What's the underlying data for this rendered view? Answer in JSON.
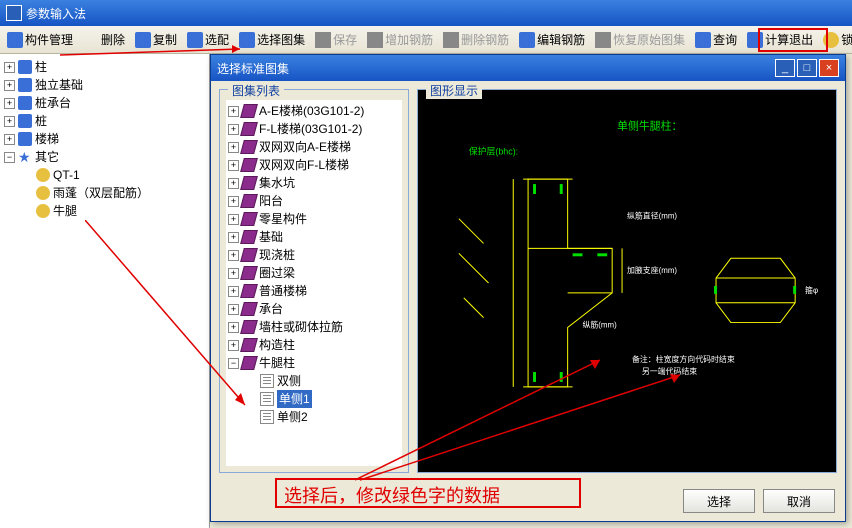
{
  "window": {
    "title": "参数输入法"
  },
  "toolbar": [
    {
      "name": "component-manage",
      "label": "构件管理",
      "icon": "ic-blue",
      "disabled": false
    },
    {
      "name": "delete",
      "label": "删除",
      "icon": "ic-x",
      "disabled": false
    },
    {
      "name": "copy",
      "label": "复制",
      "icon": "ic-blue",
      "disabled": false
    },
    {
      "name": "assign",
      "label": "选配",
      "icon": "ic-blue",
      "disabled": false
    },
    {
      "name": "select-atlas",
      "label": "选择图集",
      "icon": "ic-blue",
      "disabled": false
    },
    {
      "name": "save",
      "label": "保存",
      "icon": "ic-gray",
      "disabled": true
    },
    {
      "name": "add-rebar",
      "label": "增加钢筋",
      "icon": "ic-gray",
      "disabled": true
    },
    {
      "name": "delete-rebar",
      "label": "删除钢筋",
      "icon": "ic-gray",
      "disabled": true
    },
    {
      "name": "edit-rebar",
      "label": "编辑钢筋",
      "icon": "ic-blue",
      "disabled": false
    },
    {
      "name": "restore-atlas",
      "label": "恢复原始图集",
      "icon": "ic-gray",
      "disabled": true
    },
    {
      "name": "query",
      "label": "查询",
      "icon": "ic-blue",
      "disabled": false
    },
    {
      "name": "calc-exit",
      "label": "计算退出",
      "icon": "ic-blue",
      "disabled": false
    },
    {
      "name": "lock",
      "label": "锁",
      "icon": "ic-yellow",
      "disabled": false
    }
  ],
  "leftTree": [
    {
      "exp": "+",
      "indent": 0,
      "icon": "ic-blue",
      "label": "柱"
    },
    {
      "exp": "+",
      "indent": 0,
      "icon": "ic-blue",
      "label": "独立基础"
    },
    {
      "exp": "+",
      "indent": 0,
      "icon": "ic-blue",
      "label": "桩承台"
    },
    {
      "exp": "+",
      "indent": 0,
      "icon": "ic-blue",
      "label": "桩"
    },
    {
      "exp": "+",
      "indent": 0,
      "icon": "ic-blue",
      "label": "楼梯"
    },
    {
      "exp": "−",
      "indent": 0,
      "icon": "ic-star",
      "label": "其它"
    },
    {
      "exp": "",
      "indent": 1,
      "icon": "ic-yellow",
      "label": "QT-1"
    },
    {
      "exp": "",
      "indent": 1,
      "icon": "ic-yellow",
      "label": "雨蓬（双层配筋）"
    },
    {
      "exp": "",
      "indent": 1,
      "icon": "ic-yellow",
      "label": "牛腿"
    }
  ],
  "dialog": {
    "title": "选择标准图集",
    "groupLeft": "图集列表",
    "groupRight": "图形显示",
    "btnSelect": "选择",
    "btnCancel": "取消"
  },
  "atlasTree": [
    {
      "exp": "+",
      "indent": 0,
      "icon": "book",
      "label": "A-E楼梯(03G101-2)"
    },
    {
      "exp": "+",
      "indent": 0,
      "icon": "book",
      "label": "F-L楼梯(03G101-2)"
    },
    {
      "exp": "+",
      "indent": 0,
      "icon": "book",
      "label": "双网双向A-E楼梯"
    },
    {
      "exp": "+",
      "indent": 0,
      "icon": "book",
      "label": "双网双向F-L楼梯"
    },
    {
      "exp": "+",
      "indent": 0,
      "icon": "book",
      "label": "集水坑"
    },
    {
      "exp": "+",
      "indent": 0,
      "icon": "book",
      "label": "阳台"
    },
    {
      "exp": "+",
      "indent": 0,
      "icon": "book",
      "label": "零星构件"
    },
    {
      "exp": "+",
      "indent": 0,
      "icon": "book",
      "label": "基础"
    },
    {
      "exp": "+",
      "indent": 0,
      "icon": "book",
      "label": "现浇桩"
    },
    {
      "exp": "+",
      "indent": 0,
      "icon": "book",
      "label": "圈过梁"
    },
    {
      "exp": "+",
      "indent": 0,
      "icon": "book",
      "label": "普通楼梯"
    },
    {
      "exp": "+",
      "indent": 0,
      "icon": "book",
      "label": "承台"
    },
    {
      "exp": "+",
      "indent": 0,
      "icon": "book",
      "label": "墙柱或砌体拉筋"
    },
    {
      "exp": "+",
      "indent": 0,
      "icon": "book",
      "label": "构造柱"
    },
    {
      "exp": "−",
      "indent": 0,
      "icon": "book",
      "label": "牛腿柱"
    },
    {
      "exp": "",
      "indent": 1,
      "icon": "page",
      "label": "双侧"
    },
    {
      "exp": "",
      "indent": 1,
      "icon": "page",
      "label": "单侧1",
      "selected": true
    },
    {
      "exp": "",
      "indent": 1,
      "icon": "page",
      "label": "单侧2"
    }
  ],
  "annotations": {
    "text": "选择后，修改绿色字的数据",
    "diagram_title": "单侧牛腿柱：",
    "diagram_note1": "保护层(bhc):",
    "diagram_note2": "备注：柱宽度方向代码时结束\n另一端代码结束"
  },
  "colors": {
    "titlebar_start": "#3a81e0",
    "titlebar_end": "#1654c4",
    "red": "#e00000",
    "green_text": "#00ff00",
    "diagram_bg": "#000000",
    "diagram_line": "#ffff00",
    "diagram_green": "#00e000",
    "diagram_orange": "#ff8020"
  }
}
